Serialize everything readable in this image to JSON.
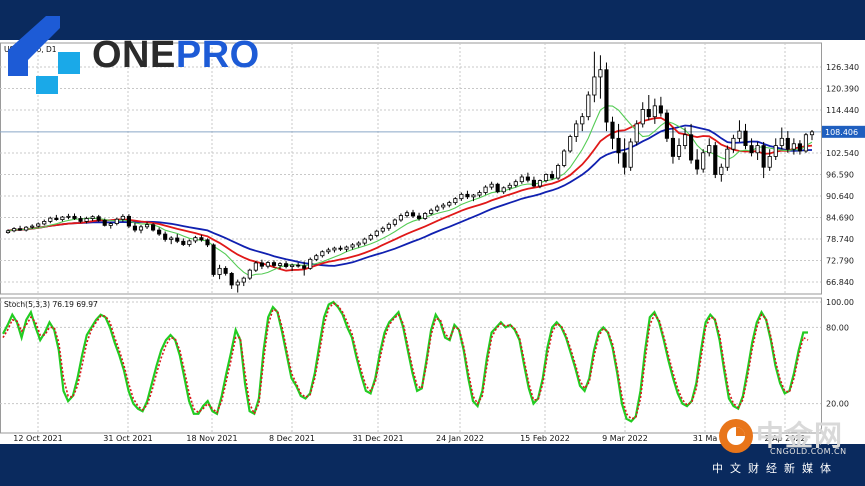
{
  "chart_data": [
    {
      "type": "candlestick",
      "title": "USOIL.pro, D1",
      "y_ticks": [
        66.84,
        72.79,
        78.74,
        84.69,
        90.64,
        96.59,
        102.54,
        108.406,
        114.44,
        120.39,
        126.34
      ],
      "y_tick_labels": [
        "66.840",
        "72.790",
        "78.740",
        "84.690",
        "90.640",
        "96.590",
        "102.540",
        "108.406",
        "114.440",
        "120.390",
        "126.340"
      ],
      "current_price": 108.406,
      "current_price_label": "108.406",
      "ylim": [
        63.5,
        133
      ],
      "x_tick_labels": [
        "12 Oct 2021",
        "31 Oct 2021",
        "18 Nov 2021",
        "8 Dec 2021",
        "31 Dec 2021",
        "24 Jan 2022",
        "15 Feb 2022",
        "9 Mar 2022",
        "31 Mar 2022",
        "20 Apr 2022"
      ],
      "x_tick_label_visible": [
        "12 Oct 2021",
        "31 Oct 2021",
        "18 Nov 2021",
        "8 Dec 2021",
        "31 Dec 2021",
        "24 Jan 2022",
        "15 Feb 2022",
        "9 Mar 2022",
        "31 Ma",
        "2 Ap 2022"
      ],
      "ohlc": [
        [
          80.5,
          81.4,
          80.2,
          81.0
        ],
        [
          81.0,
          82.0,
          80.6,
          81.6
        ],
        [
          81.6,
          82.4,
          81.0,
          81.2
        ],
        [
          81.2,
          82.3,
          80.8,
          82.0
        ],
        [
          82.0,
          82.8,
          81.5,
          82.3
        ],
        [
          82.3,
          83.3,
          81.9,
          82.9
        ],
        [
          82.9,
          84.1,
          82.5,
          83.6
        ],
        [
          83.6,
          84.9,
          83.1,
          84.5
        ],
        [
          84.5,
          85.4,
          83.8,
          84.1
        ],
        [
          84.1,
          85.1,
          83.6,
          84.8
        ],
        [
          84.8,
          85.7,
          84.2,
          85.0
        ],
        [
          85.0,
          85.8,
          84.0,
          84.4
        ],
        [
          84.4,
          85.1,
          83.2,
          83.6
        ],
        [
          83.6,
          84.9,
          83.0,
          84.4
        ],
        [
          84.4,
          85.3,
          83.7,
          84.9
        ],
        [
          84.9,
          85.4,
          83.5,
          83.9
        ],
        [
          83.9,
          84.4,
          82.2,
          82.5
        ],
        [
          82.5,
          83.4,
          81.6,
          83.0
        ],
        [
          83.0,
          84.6,
          82.5,
          84.2
        ],
        [
          84.2,
          85.6,
          83.5,
          85.0
        ],
        [
          85.0,
          85.6,
          81.8,
          82.3
        ],
        [
          82.3,
          83.2,
          80.6,
          81.2
        ],
        [
          81.2,
          82.6,
          80.3,
          82.1
        ],
        [
          82.1,
          83.4,
          81.5,
          82.7
        ],
        [
          82.7,
          83.1,
          80.8,
          81.2
        ],
        [
          81.2,
          81.9,
          79.6,
          80.1
        ],
        [
          80.1,
          80.8,
          78.0,
          78.6
        ],
        [
          78.6,
          79.5,
          77.3,
          79.0
        ],
        [
          79.0,
          80.1,
          77.6,
          78.1
        ],
        [
          78.1,
          78.9,
          76.8,
          77.2
        ],
        [
          77.2,
          78.6,
          76.6,
          78.2
        ],
        [
          78.2,
          79.6,
          77.6,
          79.1
        ],
        [
          79.1,
          79.9,
          78.0,
          78.5
        ],
        [
          78.5,
          78.9,
          76.5,
          77.1
        ],
        [
          77.1,
          77.5,
          68.3,
          68.9
        ],
        [
          68.9,
          71.6,
          67.6,
          70.6
        ],
        [
          70.6,
          71.2,
          68.6,
          69.2
        ],
        [
          69.2,
          69.6,
          64.9,
          66.0
        ],
        [
          66.0,
          67.5,
          63.9,
          66.8
        ],
        [
          66.8,
          68.3,
          65.7,
          67.9
        ],
        [
          67.9,
          70.5,
          67.4,
          70.1
        ],
        [
          70.1,
          72.6,
          69.6,
          72.1
        ],
        [
          72.1,
          73.0,
          70.4,
          71.2
        ],
        [
          71.2,
          72.6,
          70.6,
          72.2
        ],
        [
          72.2,
          72.8,
          70.8,
          71.4
        ],
        [
          71.4,
          72.3,
          70.4,
          71.9
        ],
        [
          71.9,
          72.6,
          70.6,
          71.1
        ],
        [
          71.1,
          71.9,
          69.9,
          71.5
        ],
        [
          71.5,
          72.2,
          70.8,
          71.3
        ],
        [
          71.3,
          72.5,
          68.6,
          70.6
        ],
        [
          70.6,
          73.6,
          70.2,
          73.1
        ],
        [
          73.1,
          74.6,
          72.6,
          74.1
        ],
        [
          74.1,
          75.6,
          73.6,
          75.2
        ],
        [
          75.2,
          76.3,
          74.6,
          75.7
        ],
        [
          75.7,
          76.6,
          75.0,
          76.2
        ],
        [
          76.2,
          76.9,
          75.4,
          75.9
        ],
        [
          75.9,
          76.9,
          75.2,
          76.5
        ],
        [
          76.5,
          77.6,
          75.8,
          77.1
        ],
        [
          77.1,
          78.1,
          76.4,
          77.6
        ],
        [
          77.6,
          79.1,
          77.0,
          78.7
        ],
        [
          78.7,
          80.2,
          78.2,
          79.7
        ],
        [
          79.7,
          81.3,
          79.2,
          80.9
        ],
        [
          80.9,
          82.2,
          80.3,
          81.7
        ],
        [
          81.7,
          83.3,
          81.0,
          82.8
        ],
        [
          82.8,
          84.4,
          82.2,
          84.0
        ],
        [
          84.0,
          85.8,
          83.5,
          85.2
        ],
        [
          85.2,
          86.6,
          84.6,
          86.0
        ],
        [
          86.0,
          86.8,
          84.6,
          85.1
        ],
        [
          85.1,
          86.0,
          83.8,
          84.4
        ],
        [
          84.4,
          86.2,
          84.0,
          85.8
        ],
        [
          85.8,
          87.2,
          85.3,
          86.7
        ],
        [
          86.7,
          88.2,
          86.2,
          87.6
        ],
        [
          87.6,
          88.7,
          86.9,
          88.1
        ],
        [
          88.1,
          89.3,
          87.5,
          88.8
        ],
        [
          88.8,
          90.3,
          88.2,
          89.9
        ],
        [
          89.9,
          91.6,
          89.3,
          91.1
        ],
        [
          91.1,
          92.1,
          89.8,
          90.4
        ],
        [
          90.4,
          91.2,
          89.2,
          90.9
        ],
        [
          90.9,
          92.2,
          90.3,
          91.6
        ],
        [
          91.6,
          93.6,
          91.0,
          93.1
        ],
        [
          93.1,
          94.6,
          92.4,
          93.9
        ],
        [
          93.9,
          94.3,
          91.4,
          91.8
        ],
        [
          91.8,
          93.3,
          91.2,
          92.9
        ],
        [
          92.9,
          94.3,
          92.2,
          93.6
        ],
        [
          93.6,
          95.2,
          93.0,
          94.6
        ],
        [
          94.6,
          96.6,
          94.0,
          95.9
        ],
        [
          95.9,
          97.1,
          94.4,
          95.0
        ],
        [
          95.0,
          96.0,
          93.0,
          93.4
        ],
        [
          93.4,
          95.2,
          92.8,
          94.9
        ],
        [
          94.9,
          96.9,
          94.4,
          96.6
        ],
        [
          96.6,
          97.6,
          95.1,
          95.6
        ],
        [
          95.6,
          99.6,
          95.1,
          99.1
        ],
        [
          99.1,
          103.6,
          98.6,
          103.1
        ],
        [
          103.1,
          107.6,
          102.6,
          107.1
        ],
        [
          107.1,
          111.6,
          105.6,
          110.6
        ],
        [
          110.6,
          113.6,
          108.6,
          112.6
        ],
        [
          112.6,
          119.6,
          111.6,
          118.6
        ],
        [
          118.6,
          130.6,
          116.6,
          123.6
        ],
        [
          123.6,
          129.6,
          117.6,
          125.6
        ],
        [
          125.6,
          127.6,
          108.6,
          111.1
        ],
        [
          111.1,
          112.6,
          103.6,
          106.6
        ],
        [
          106.6,
          110.6,
          99.6,
          102.6
        ],
        [
          102.6,
          106.6,
          96.6,
          98.6
        ],
        [
          98.6,
          106.6,
          97.6,
          105.6
        ],
        [
          105.6,
          111.6,
          104.6,
          110.6
        ],
        [
          110.6,
          116.6,
          109.6,
          114.6
        ],
        [
          114.6,
          118.6,
          111.6,
          112.6
        ],
        [
          112.6,
          117.6,
          110.6,
          115.6
        ],
        [
          115.6,
          118.1,
          112.6,
          113.6
        ],
        [
          113.6,
          114.6,
          105.6,
          106.6
        ],
        [
          106.6,
          109.6,
          99.6,
          101.6
        ],
        [
          101.6,
          106.6,
          100.6,
          104.6
        ],
        [
          104.6,
          109.6,
          103.6,
          107.6
        ],
        [
          107.6,
          110.6,
          99.6,
          100.6
        ],
        [
          100.6,
          103.6,
          96.6,
          98.1
        ],
        [
          98.1,
          103.6,
          97.1,
          102.6
        ],
        [
          102.6,
          106.6,
          101.6,
          104.6
        ],
        [
          104.6,
          105.6,
          95.6,
          96.6
        ],
        [
          96.6,
          99.6,
          94.6,
          98.6
        ],
        [
          98.6,
          104.6,
          97.6,
          103.6
        ],
        [
          103.6,
          107.6,
          102.6,
          106.6
        ],
        [
          106.6,
          111.6,
          105.6,
          108.6
        ],
        [
          108.6,
          110.6,
          103.6,
          104.6
        ],
        [
          104.6,
          106.6,
          101.6,
          102.6
        ],
        [
          102.6,
          105.6,
          100.6,
          104.6
        ],
        [
          104.6,
          105.6,
          95.6,
          98.6
        ],
        [
          98.6,
          103.6,
          97.6,
          101.6
        ],
        [
          101.6,
          106.6,
          100.6,
          104.6
        ],
        [
          104.6,
          109.6,
          103.6,
          106.6
        ],
        [
          106.6,
          108.6,
          102.6,
          103.6
        ],
        [
          103.6,
          106.6,
          102.1,
          105.1
        ],
        [
          105.1,
          106.1,
          102.1,
          103.1
        ],
        [
          103.1,
          108.1,
          102.6,
          107.6
        ],
        [
          107.6,
          108.9,
          106.1,
          108.4
        ]
      ]
    },
    {
      "type": "line",
      "title": "Stoch(5,3,3) 76.19 69.97",
      "y_ticks": [
        20,
        80,
        100
      ],
      "y_tick_labels": [
        "20.00",
        "80.00",
        "100.00"
      ],
      "ylim": [
        0,
        100
      ],
      "series": [
        {
          "name": "main",
          "color": "#22cc22",
          "values": [
            75,
            82,
            90,
            84,
            72,
            86,
            92,
            80,
            70,
            76,
            84,
            78,
            62,
            30,
            22,
            26,
            40,
            58,
            74,
            80,
            86,
            90,
            88,
            80,
            68,
            58,
            46,
            30,
            20,
            16,
            14,
            22,
            36,
            50,
            62,
            70,
            74,
            70,
            58,
            40,
            22,
            12,
            12,
            18,
            22,
            14,
            12,
            26,
            44,
            60,
            78,
            70,
            36,
            14,
            12,
            24,
            62,
            88,
            96,
            92,
            76,
            58,
            40,
            34,
            26,
            24,
            28,
            44,
            66,
            88,
            98,
            100,
            96,
            90,
            80,
            72,
            56,
            42,
            30,
            28,
            40,
            60,
            76,
            84,
            88,
            92,
            80,
            62,
            44,
            30,
            32,
            54,
            78,
            90,
            84,
            72,
            70,
            82,
            78,
            62,
            40,
            22,
            18,
            30,
            56,
            76,
            80,
            84,
            80,
            82,
            78,
            70,
            50,
            32,
            20,
            24,
            40,
            64,
            80,
            84,
            80,
            72,
            60,
            48,
            34,
            30,
            40,
            62,
            76,
            80,
            76,
            64,
            44,
            20,
            8,
            6,
            10,
            30,
            62,
            88,
            92,
            84,
            70,
            54,
            40,
            28,
            20,
            18,
            22,
            36,
            62,
            84,
            90,
            86,
            70,
            46,
            24,
            18,
            16,
            26,
            46,
            68,
            84,
            92,
            86,
            70,
            50,
            36,
            28,
            30,
            44,
            62,
            76,
            76
          ]
        },
        {
          "name": "signal",
          "color": "#d8181b",
          "values": [
            72,
            78,
            86,
            85,
            77,
            82,
            88,
            84,
            74,
            74,
            80,
            80,
            68,
            40,
            26,
            25,
            34,
            50,
            68,
            78,
            84,
            89,
            89,
            84,
            72,
            62,
            50,
            36,
            24,
            18,
            15,
            19,
            30,
            44,
            56,
            66,
            72,
            71,
            62,
            46,
            28,
            16,
            13,
            16,
            20,
            16,
            13,
            22,
            38,
            54,
            72,
            72,
            44,
            20,
            12,
            20,
            54,
            82,
            94,
            93,
            80,
            62,
            44,
            36,
            28,
            25,
            27,
            40,
            60,
            82,
            95,
            99,
            97,
            92,
            84,
            75,
            60,
            46,
            34,
            30,
            37,
            55,
            72,
            82,
            87,
            90,
            83,
            66,
            48,
            34,
            32,
            50,
            74,
            87,
            86,
            75,
            71,
            80,
            79,
            65,
            45,
            26,
            20,
            26,
            50,
            72,
            79,
            83,
            81,
            82,
            79,
            72,
            54,
            36,
            23,
            23,
            36,
            58,
            76,
            83,
            81,
            74,
            63,
            51,
            38,
            32,
            37,
            57,
            73,
            79,
            77,
            67,
            48,
            26,
            12,
            8,
            9,
            24,
            54,
            82,
            90,
            86,
            73,
            58,
            44,
            32,
            23,
            19,
            21,
            32,
            56,
            80,
            88,
            87,
            74,
            51,
            29,
            20,
            17,
            23,
            41,
            63,
            80,
            90,
            87,
            73,
            54,
            39,
            30,
            29,
            40,
            58,
            72,
            70
          ]
        }
      ]
    }
  ],
  "brand": {
    "name_part1": "ONE",
    "name_part2": "PRO"
  },
  "watermark": {
    "cn": "中金网",
    "url": "CNGOLD.COM.CN",
    "sub": "中文财经新媒体"
  },
  "colors": {
    "frame": "#0a2a5e",
    "ma_fast": "#55cc55",
    "ma_mid": "#e01818",
    "ma_slow": "#1020b0",
    "stoch_main": "#22cc22",
    "stoch_signal": "#d8181b",
    "bull": "#ffffff",
    "bear": "#000000"
  }
}
